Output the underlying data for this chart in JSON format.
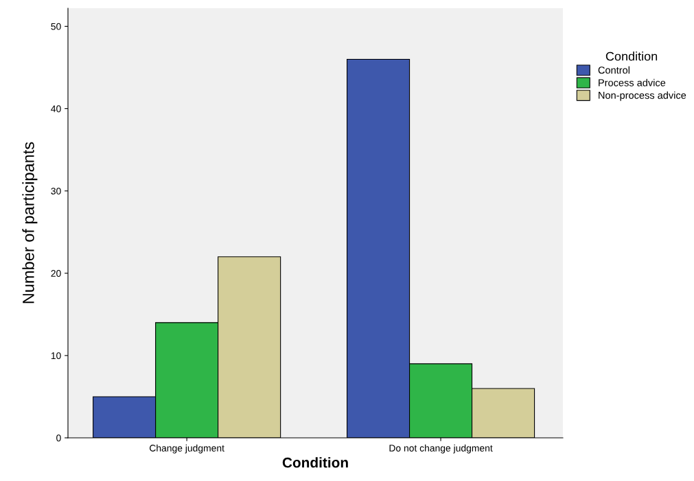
{
  "chart_data": {
    "type": "bar",
    "xlabel": "Condition",
    "ylabel": "Number of participants",
    "legend_title": "Condition",
    "categories": [
      "Change judgment",
      "Do not change judgment"
    ],
    "series": [
      {
        "name": "Control",
        "color": "#3e58ac",
        "values": [
          5,
          46
        ]
      },
      {
        "name": "Process advice",
        "color": "#2fb548",
        "values": [
          14,
          9
        ]
      },
      {
        "name": "Non-process advice",
        "color": "#d4ce99",
        "values": [
          22,
          6
        ]
      }
    ],
    "ylim": [
      0,
      52.2
    ],
    "yticks": [
      0,
      10,
      20,
      30,
      40,
      50
    ],
    "grid": false,
    "legend": "top right"
  }
}
